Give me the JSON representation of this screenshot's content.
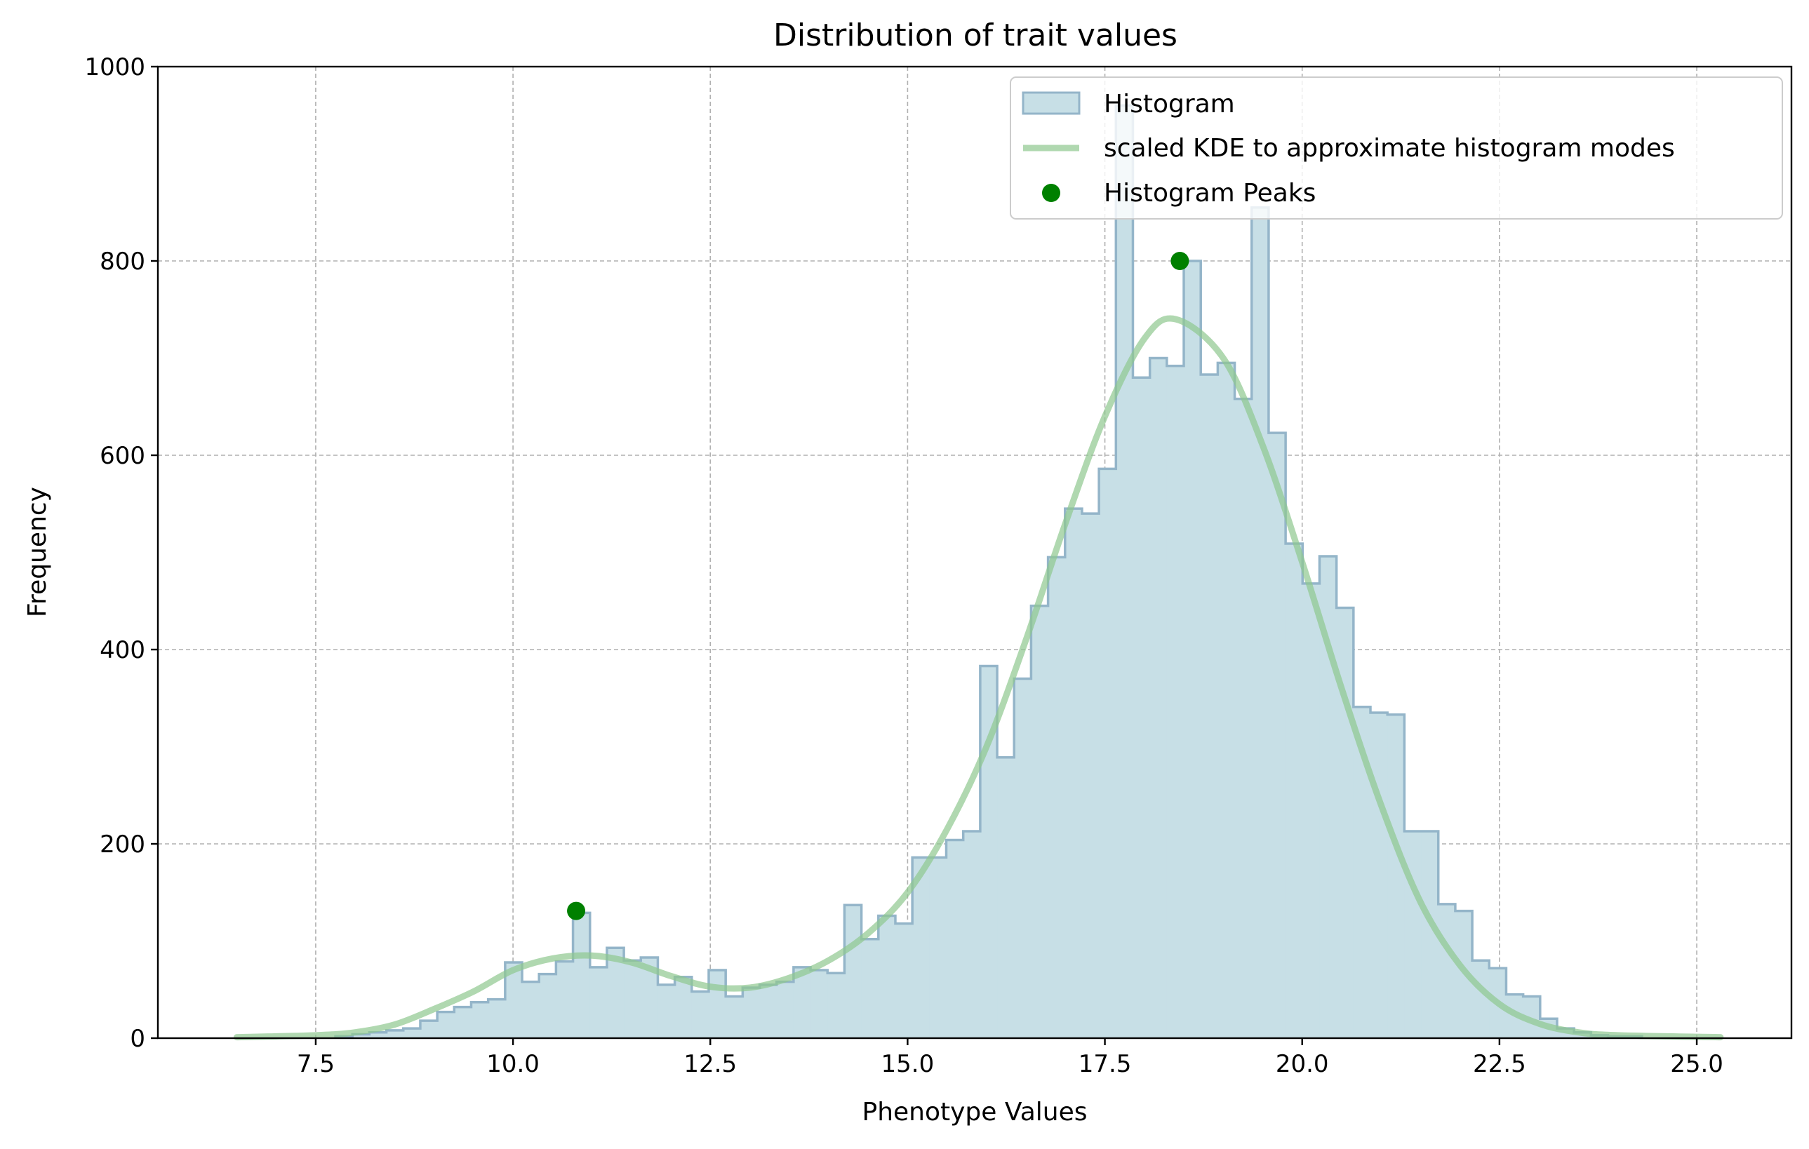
{
  "chart_data": {
    "type": "bar",
    "title": "Distribution of trait values",
    "xlabel": "Phenotype Values",
    "ylabel": "Frequency",
    "xlim": [
      5.5,
      26.2
    ],
    "ylim": [
      0,
      1000
    ],
    "xticks": [
      7.5,
      10.0,
      12.5,
      15.0,
      17.5,
      20.0,
      22.5,
      25.0
    ],
    "xtick_labels": [
      "7.5",
      "10.0",
      "12.5",
      "15.0",
      "17.5",
      "20.0",
      "22.5",
      "25.0"
    ],
    "yticks": [
      0,
      200,
      400,
      600,
      800,
      1000
    ],
    "ytick_labels": [
      "0",
      "200",
      "400",
      "600",
      "800",
      "1000"
    ],
    "grid": true,
    "legend_position": "top-right",
    "colors": {
      "hist_fill": "#c7dfe6",
      "hist_edge": "#94b5c9",
      "kde": "#8fc88f",
      "peaks": "#008000"
    },
    "histogram": {
      "name": "Histogram",
      "bin_start": 7.75,
      "bin_width": 0.215,
      "values": [
        2,
        4,
        6,
        8,
        10,
        18,
        27,
        32,
        37,
        40,
        78,
        58,
        66,
        79,
        129,
        73,
        93,
        80,
        83,
        55,
        63,
        48,
        70,
        43,
        52,
        55,
        58,
        73,
        70,
        67,
        137,
        102,
        126,
        118,
        186,
        186,
        204,
        213,
        383,
        289,
        370,
        445,
        495,
        545,
        540,
        586,
        960,
        680,
        700,
        692,
        800,
        683,
        695,
        658,
        855,
        623,
        509,
        468,
        496,
        443,
        341,
        335,
        333,
        213,
        213,
        138,
        131,
        80,
        72,
        45,
        43,
        20,
        10,
        6,
        3,
        2,
        2
      ]
    },
    "kde": {
      "name": "scaled KDE to approximate histogram modes",
      "x": [
        6.5,
        7.5,
        8.0,
        8.5,
        9.0,
        9.5,
        10.0,
        10.5,
        11.0,
        11.5,
        12.0,
        12.5,
        13.0,
        13.5,
        14.0,
        14.5,
        15.0,
        15.5,
        16.0,
        16.5,
        17.0,
        17.5,
        18.0,
        18.4,
        19.0,
        19.5,
        20.0,
        20.5,
        21.0,
        21.5,
        22.0,
        22.5,
        23.0,
        23.5,
        24.0,
        25.3
      ],
      "y": [
        1,
        3,
        6,
        14,
        30,
        48,
        70,
        82,
        85,
        78,
        64,
        53,
        52,
        62,
        80,
        108,
        150,
        215,
        300,
        410,
        530,
        640,
        720,
        740,
        700,
        610,
        490,
        360,
        240,
        140,
        75,
        35,
        15,
        6,
        3,
        1
      ]
    },
    "peaks": {
      "name": "Histogram Peaks",
      "x": [
        10.8,
        18.45
      ],
      "y": [
        131,
        800
      ]
    }
  }
}
